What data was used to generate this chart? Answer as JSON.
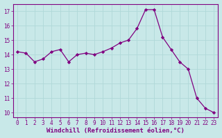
{
  "x": [
    0,
    1,
    2,
    3,
    4,
    5,
    6,
    7,
    8,
    9,
    10,
    11,
    12,
    13,
    14,
    15,
    16,
    17,
    18,
    19,
    20,
    21,
    22,
    23
  ],
  "y": [
    14.2,
    14.1,
    13.5,
    13.7,
    14.2,
    14.35,
    13.5,
    14.0,
    14.1,
    14.0,
    14.2,
    14.45,
    14.8,
    15.0,
    15.8,
    17.1,
    17.1,
    15.2,
    14.35,
    13.5,
    13.0,
    11.0,
    10.3,
    10.0
  ],
  "line_color": "#800080",
  "marker_color": "#800080",
  "bg_color": "#c8e8e8",
  "grid_color": "#b0d8d8",
  "xlabel": "Windchill (Refroidissement éolien,°C)",
  "xlabel_color": "#800080",
  "tick_color": "#800080",
  "spine_color": "#800080",
  "ylim": [
    9.7,
    17.5
  ],
  "xlim": [
    -0.5,
    23.5
  ],
  "yticks": [
    10,
    11,
    12,
    13,
    14,
    15,
    16,
    17
  ],
  "xticks": [
    0,
    1,
    2,
    3,
    4,
    5,
    6,
    7,
    8,
    9,
    10,
    11,
    12,
    13,
    14,
    15,
    16,
    17,
    18,
    19,
    20,
    21,
    22,
    23
  ],
  "tick_fontsize": 5.5,
  "label_fontsize": 6.5
}
